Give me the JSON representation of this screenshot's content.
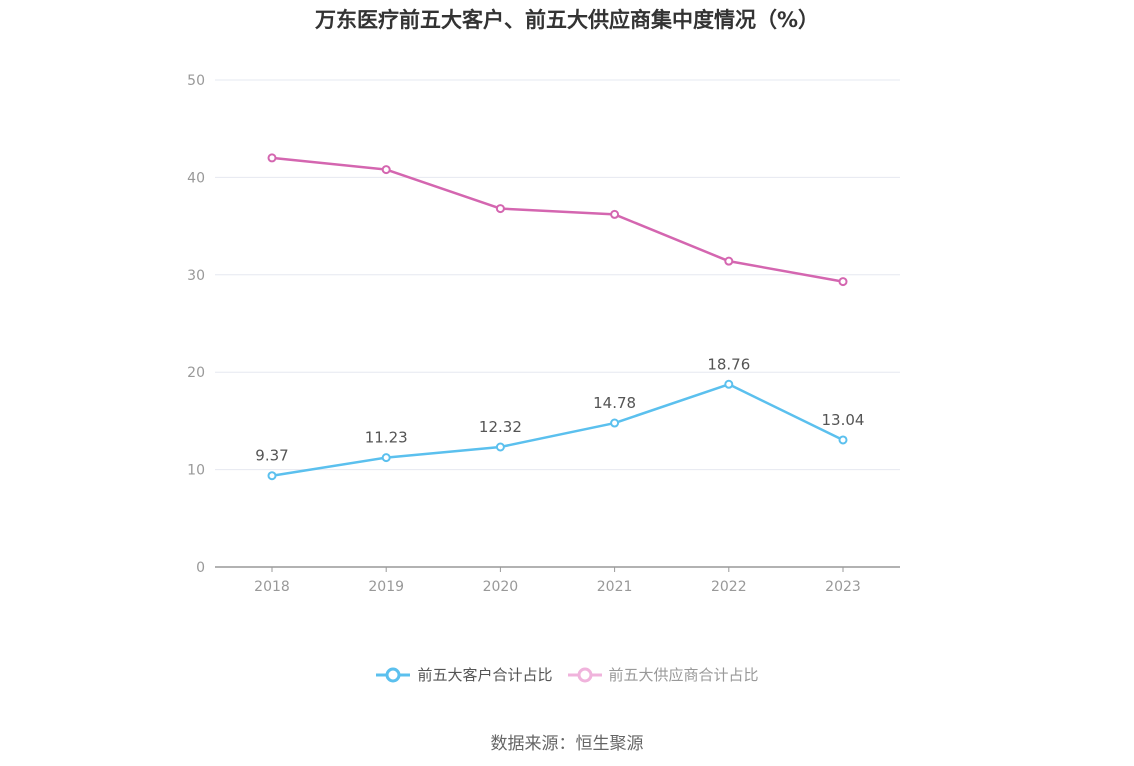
{
  "chart_data": {
    "type": "line",
    "title": "万东医疗前五大客户、前五大供应商集中度情况（%）",
    "categories": [
      "2018",
      "2019",
      "2020",
      "2021",
      "2022",
      "2023"
    ],
    "ylim": [
      0,
      50
    ],
    "yticks": [
      0,
      10,
      20,
      30,
      40,
      50
    ],
    "grid": true,
    "legend_position": "bottom",
    "series": [
      {
        "name": "前五大客户合计占比",
        "values": [
          9.37,
          11.23,
          12.32,
          14.78,
          18.76,
          13.04
        ],
        "color": "#5bc0ee",
        "show_labels": true,
        "labels": [
          "9.37",
          "11.23",
          "12.32",
          "14.78",
          "18.76",
          "13.04"
        ]
      },
      {
        "name": "前五大供应商合计占比",
        "values": [
          42.0,
          40.8,
          36.8,
          36.2,
          31.4,
          29.3
        ],
        "color": "#d466b0",
        "legend_color": "#f0b3dc",
        "show_labels": false
      }
    ]
  },
  "source": "数据来源：恒生聚源"
}
